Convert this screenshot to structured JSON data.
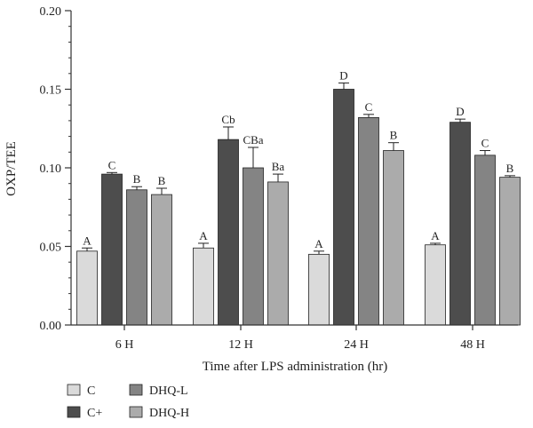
{
  "chart_data": {
    "type": "bar",
    "xlabel": "Time after LPS administration (hr)",
    "ylabel": "OXP/TEE",
    "ylim": [
      0,
      0.2
    ],
    "yticks": [
      "0.00",
      "0.05",
      "0.10",
      "0.15",
      "0.20"
    ],
    "categories": [
      "6 H",
      "12 H",
      "24 H",
      "48 H"
    ],
    "series": [
      {
        "name": "C",
        "color": "#dadada",
        "values": [
          0.047,
          0.049,
          0.045,
          0.051
        ],
        "errors": [
          0.002,
          0.003,
          0.002,
          0.001
        ],
        "letters": [
          "A",
          "A",
          "A",
          "A"
        ]
      },
      {
        "name": "C+",
        "color": "#4d4d4d",
        "values": [
          0.096,
          0.118,
          0.15,
          0.129
        ],
        "errors": [
          0.001,
          0.008,
          0.004,
          0.002
        ],
        "letters": [
          "C",
          "Cb",
          "D",
          "D"
        ]
      },
      {
        "name": "DHQ-L",
        "color": "#848484",
        "values": [
          0.086,
          0.1,
          0.132,
          0.108
        ],
        "errors": [
          0.002,
          0.013,
          0.002,
          0.003
        ],
        "letters": [
          "B",
          "CBa",
          "C",
          "C"
        ]
      },
      {
        "name": "DHQ-H",
        "color": "#ababab",
        "values": [
          0.083,
          0.091,
          0.111,
          0.094
        ],
        "errors": [
          0.004,
          0.005,
          0.005,
          0.001
        ],
        "letters": [
          "B",
          "Ba",
          "B",
          "B"
        ]
      }
    ],
    "legend_position": "bottom-left"
  }
}
